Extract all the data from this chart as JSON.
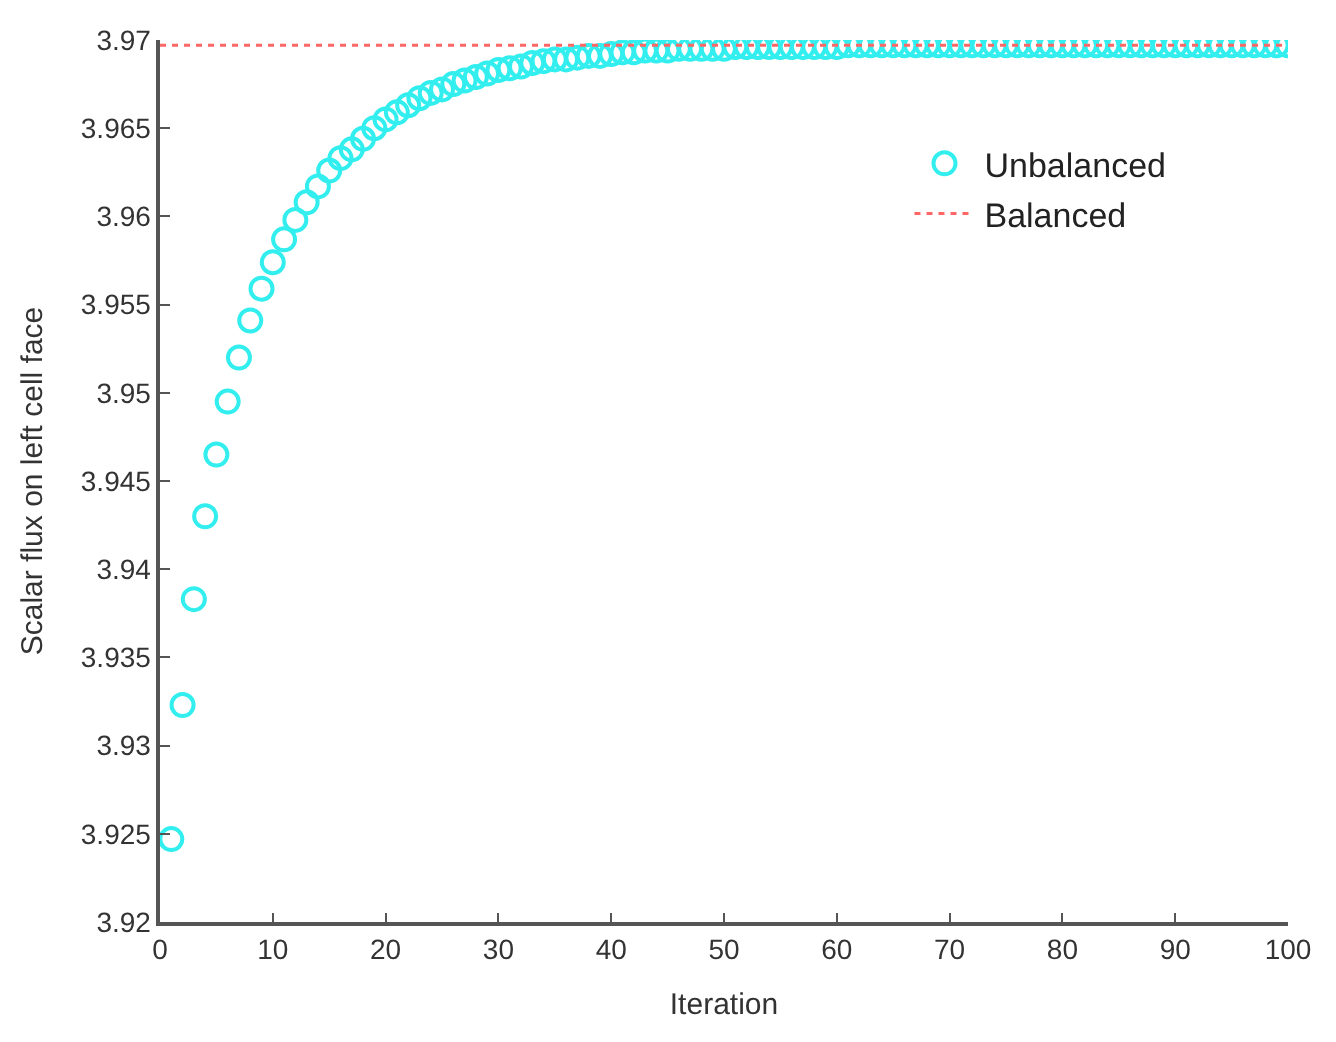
{
  "chart_data": {
    "type": "scatter",
    "xlabel": "Iteration",
    "ylabel": "Scalar flux on left cell face",
    "xlim": [
      0,
      100
    ],
    "xticks": [
      0,
      10,
      20,
      30,
      40,
      50,
      60,
      70,
      80,
      90,
      100
    ],
    "ylim": [
      3.92,
      3.97
    ],
    "yticks": [
      3.92,
      3.925,
      3.93,
      3.935,
      3.94,
      3.945,
      3.95,
      3.955,
      3.96,
      3.965,
      3.97
    ],
    "legend": "top right",
    "series": [
      {
        "name": "Unbalanced",
        "marker": "circle",
        "color": "#33eeee",
        "x": [
          1,
          2,
          3,
          4,
          5,
          6,
          7,
          8,
          9,
          10,
          11,
          12,
          13,
          14,
          15,
          16,
          17,
          18,
          19,
          20,
          21,
          22,
          23,
          24,
          25,
          26,
          27,
          28,
          29,
          30,
          31,
          32,
          33,
          34,
          35,
          36,
          37,
          38,
          39,
          40,
          41,
          42,
          43,
          44,
          45,
          46,
          47,
          48,
          49,
          50,
          51,
          52,
          53,
          54,
          55,
          56,
          57,
          58,
          59,
          60,
          61,
          62,
          63,
          64,
          65,
          66,
          67,
          68,
          69,
          70,
          71,
          72,
          73,
          74,
          75,
          76,
          77,
          78,
          79,
          80,
          81,
          82,
          83,
          84,
          85,
          86,
          87,
          88,
          89,
          90,
          91,
          92,
          93,
          94,
          95,
          96,
          97,
          98,
          99,
          100
        ],
        "values": [
          3.9247,
          3.9323,
          3.9383,
          3.943,
          3.9465,
          3.9495,
          3.952,
          3.9541,
          3.9559,
          3.9574,
          3.9587,
          3.9598,
          3.9608,
          3.9617,
          3.9626,
          3.9633,
          3.9638,
          3.9644,
          3.965,
          3.9655,
          3.9659,
          3.9663,
          3.9667,
          3.967,
          3.9672,
          3.9675,
          3.9677,
          3.9679,
          3.9681,
          3.9683,
          3.9684,
          3.9685,
          3.9687,
          3.9688,
          3.9689,
          3.9689,
          3.969,
          3.9691,
          3.9691,
          3.9692,
          3.9693,
          3.9693,
          3.9694,
          3.9694,
          3.9694,
          3.9695,
          3.9695,
          3.9695,
          3.9695,
          3.9695,
          3.9696,
          3.9696,
          3.9696,
          3.9696,
          3.9696,
          3.9696,
          3.9696,
          3.9696,
          3.9696,
          3.9696,
          3.9697,
          3.9697,
          3.9697,
          3.9697,
          3.9697,
          3.9697,
          3.9697,
          3.9697,
          3.9697,
          3.9697,
          3.9697,
          3.9697,
          3.9697,
          3.9697,
          3.9697,
          3.9697,
          3.9697,
          3.9697,
          3.9697,
          3.9697,
          3.9697,
          3.9697,
          3.9697,
          3.9697,
          3.9697,
          3.9697,
          3.9697,
          3.9697,
          3.9697,
          3.9697,
          3.9697,
          3.9697,
          3.9697,
          3.9697,
          3.9697,
          3.9697,
          3.9697,
          3.9697,
          3.9697,
          3.9697
        ]
      },
      {
        "name": "Balanced",
        "type": "line",
        "marker": "none",
        "line_style": "dotted",
        "color": "#ff6666",
        "x": [
          0,
          100
        ],
        "values": [
          3.9697,
          3.9697
        ]
      }
    ]
  }
}
